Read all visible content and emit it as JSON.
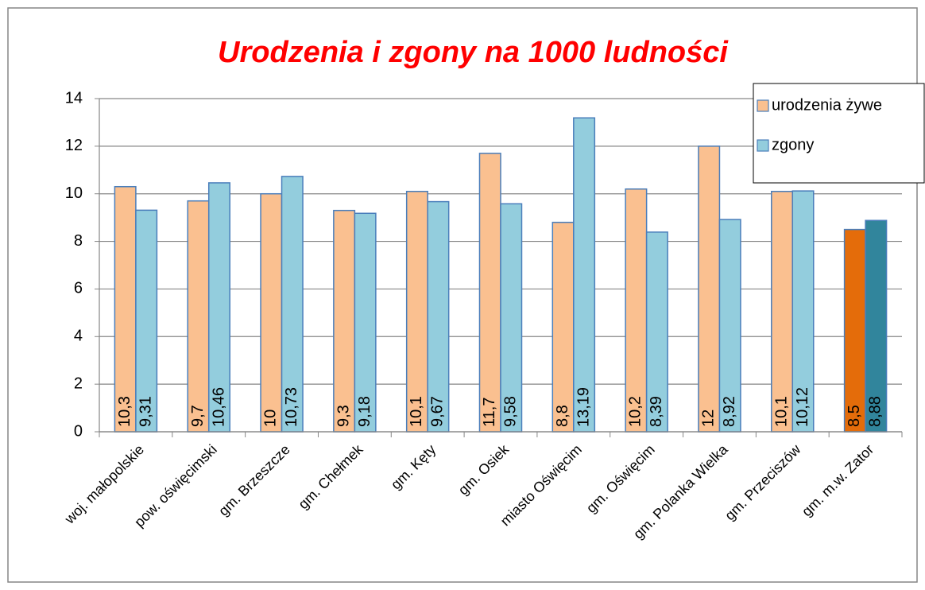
{
  "chart_data": {
    "type": "bar",
    "title": "Urodzenia i zgony na 1000 ludności",
    "categories": [
      "woj. małopolskie",
      "pow. oświęcimski",
      "gm. Brzeszcze",
      "gm. Chełmek",
      "gm. Kęty",
      "gm. Osiek",
      "miasto Oświęcim",
      "gm. Oświęcim",
      "gm. Polanka Wielka",
      "gm. Przeciszów",
      "gm. m.w. Zator"
    ],
    "series": [
      {
        "name": "urodzenia żywe",
        "color": "#fac090",
        "colors": [
          "#fac090",
          "#fac090",
          "#fac090",
          "#fac090",
          "#fac090",
          "#fac090",
          "#fac090",
          "#fac090",
          "#fac090",
          "#fac090",
          "#e46c0a"
        ],
        "values": [
          10.3,
          9.7,
          10,
          9.3,
          10.1,
          11.7,
          8.8,
          10.2,
          12,
          10.1,
          8.5
        ],
        "value_labels": [
          "10,3",
          "9,7",
          "10",
          "9,3",
          "10,1",
          "11,7",
          "8,8",
          "10,2",
          "12",
          "10,1",
          "8,5"
        ]
      },
      {
        "name": "zgony",
        "color": "#93cddd",
        "colors": [
          "#93cddd",
          "#93cddd",
          "#93cddd",
          "#93cddd",
          "#93cddd",
          "#93cddd",
          "#93cddd",
          "#93cddd",
          "#93cddd",
          "#93cddd",
          "#31859c"
        ],
        "values": [
          9.31,
          10.46,
          10.73,
          9.18,
          9.67,
          9.58,
          13.19,
          8.39,
          8.92,
          10.12,
          8.88
        ],
        "value_labels": [
          "9,31",
          "10,46",
          "10,73",
          "9,18",
          "9,67",
          "9,58",
          "13,19",
          "8,39",
          "8,92",
          "10,12",
          "8,88"
        ]
      }
    ],
    "ylim": [
      0,
      14
    ],
    "yticks": [
      0,
      2,
      4,
      6,
      8,
      10,
      12,
      14
    ],
    "grid": true,
    "legend": "top-right"
  }
}
